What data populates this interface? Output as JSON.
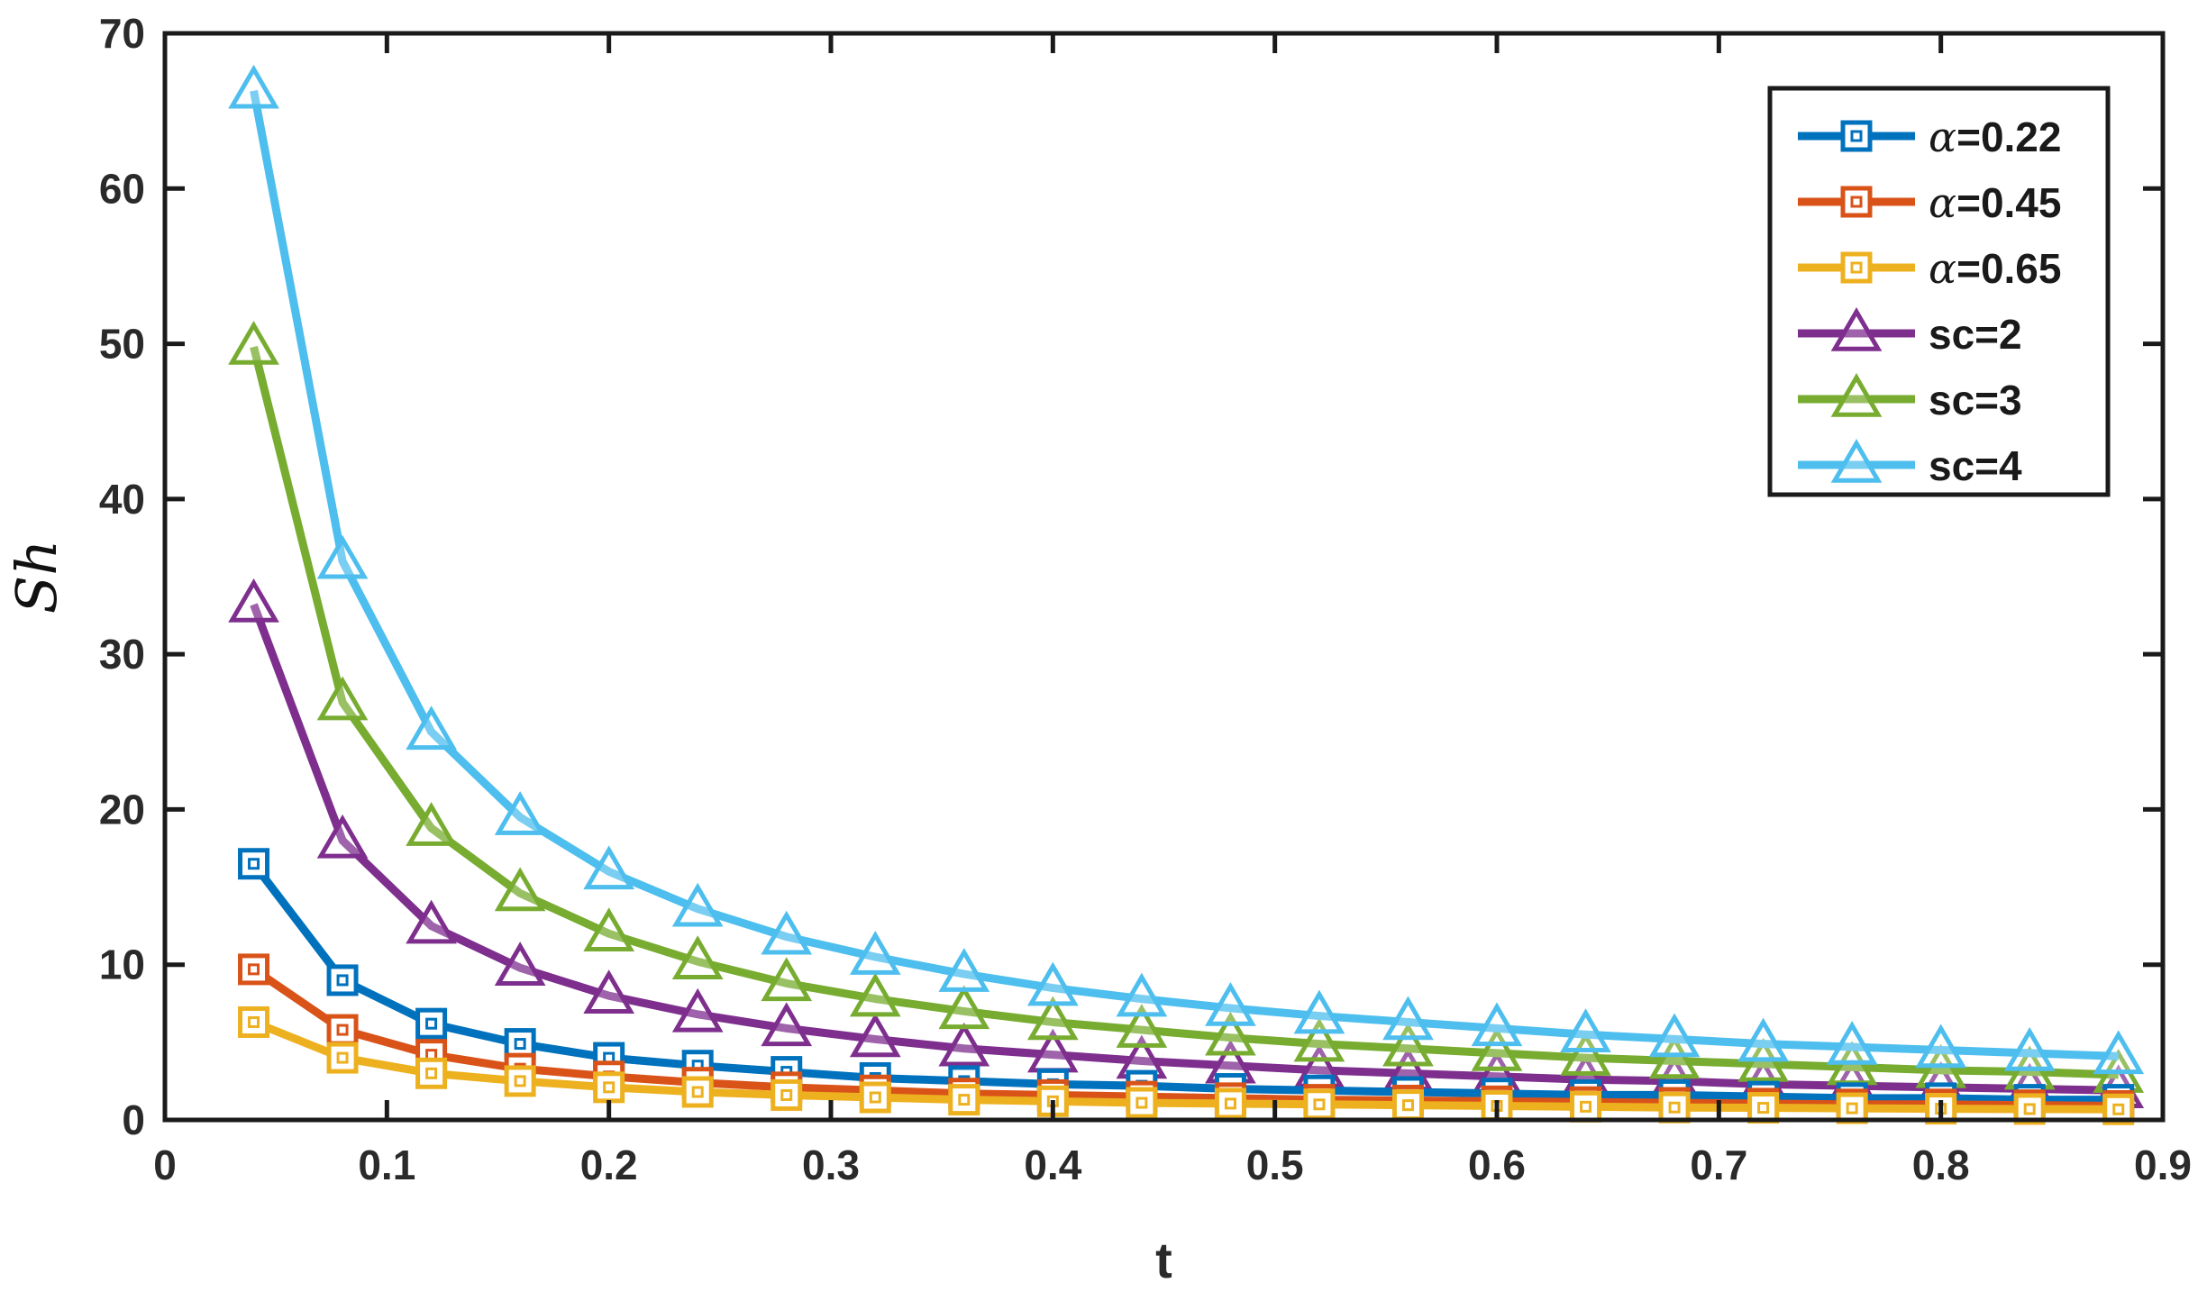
{
  "chart_data": {
    "type": "line",
    "xlabel": "t",
    "ylabel": "Sh",
    "xlim": [
      0,
      0.9
    ],
    "ylim": [
      0,
      70
    ],
    "xticks": [
      "0",
      "0.1",
      "0.2",
      "0.3",
      "0.4",
      "0.5",
      "0.6",
      "0.7",
      "0.8",
      "0.9"
    ],
    "yticks": [
      "0",
      "10",
      "20",
      "30",
      "40",
      "50",
      "60",
      "70"
    ],
    "grid": false,
    "legend_position": "top-right",
    "x": [
      0.04,
      0.08,
      0.12,
      0.16,
      0.2,
      0.24,
      0.28,
      0.32,
      0.36,
      0.4,
      0.44,
      0.48,
      0.52,
      0.56,
      0.6,
      0.64,
      0.68,
      0.72,
      0.76,
      0.8,
      0.84,
      0.88
    ],
    "series": [
      {
        "name": "α=0.22",
        "greek": "α",
        "label_rest": "=0.22",
        "marker": "square",
        "color": "#0072BD",
        "values": [
          16.5,
          9.0,
          6.2,
          4.9,
          4.0,
          3.5,
          3.1,
          2.7,
          2.5,
          2.3,
          2.2,
          2.0,
          1.9,
          1.8,
          1.7,
          1.6,
          1.6,
          1.5,
          1.4,
          1.4,
          1.3,
          1.3
        ]
      },
      {
        "name": "α=0.45",
        "greek": "α",
        "label_rest": "=0.45",
        "marker": "square",
        "color": "#D95319",
        "values": [
          9.7,
          5.8,
          4.2,
          3.3,
          2.8,
          2.4,
          2.1,
          1.9,
          1.7,
          1.6,
          1.5,
          1.4,
          1.3,
          1.25,
          1.2,
          1.15,
          1.1,
          1.05,
          1.0,
          1.0,
          0.95,
          0.9
        ]
      },
      {
        "name": "α=0.65",
        "greek": "α",
        "label_rest": "=0.65",
        "marker": "square",
        "color": "#EDB120",
        "values": [
          6.3,
          4.0,
          3.0,
          2.5,
          2.1,
          1.8,
          1.6,
          1.45,
          1.3,
          1.2,
          1.1,
          1.05,
          1.0,
          0.95,
          0.9,
          0.85,
          0.8,
          0.78,
          0.75,
          0.72,
          0.7,
          0.68
        ]
      },
      {
        "name": "sc=2",
        "label_rest": "sc=2",
        "marker": "triangle",
        "color": "#7E2F8E",
        "values": [
          33.2,
          18.0,
          12.5,
          9.8,
          8.0,
          6.8,
          5.9,
          5.2,
          4.6,
          4.2,
          3.8,
          3.5,
          3.2,
          3.0,
          2.8,
          2.6,
          2.5,
          2.3,
          2.2,
          2.1,
          2.0,
          1.9
        ]
      },
      {
        "name": "sc=3",
        "label_rest": "sc=3",
        "marker": "triangle",
        "color": "#77AC30",
        "values": [
          49.8,
          26.9,
          18.8,
          14.6,
          12.0,
          10.2,
          8.8,
          7.8,
          7.0,
          6.3,
          5.8,
          5.3,
          4.9,
          4.6,
          4.3,
          4.0,
          3.8,
          3.6,
          3.4,
          3.2,
          3.1,
          2.9
        ]
      },
      {
        "name": "sc=4",
        "label_rest": "sc=4",
        "marker": "triangle",
        "color": "#4DBEEE",
        "values": [
          66.3,
          36.0,
          25.0,
          19.5,
          16.0,
          13.6,
          11.8,
          10.5,
          9.4,
          8.5,
          7.8,
          7.2,
          6.7,
          6.3,
          5.9,
          5.5,
          5.2,
          4.9,
          4.7,
          4.5,
          4.3,
          4.1
        ]
      }
    ]
  }
}
